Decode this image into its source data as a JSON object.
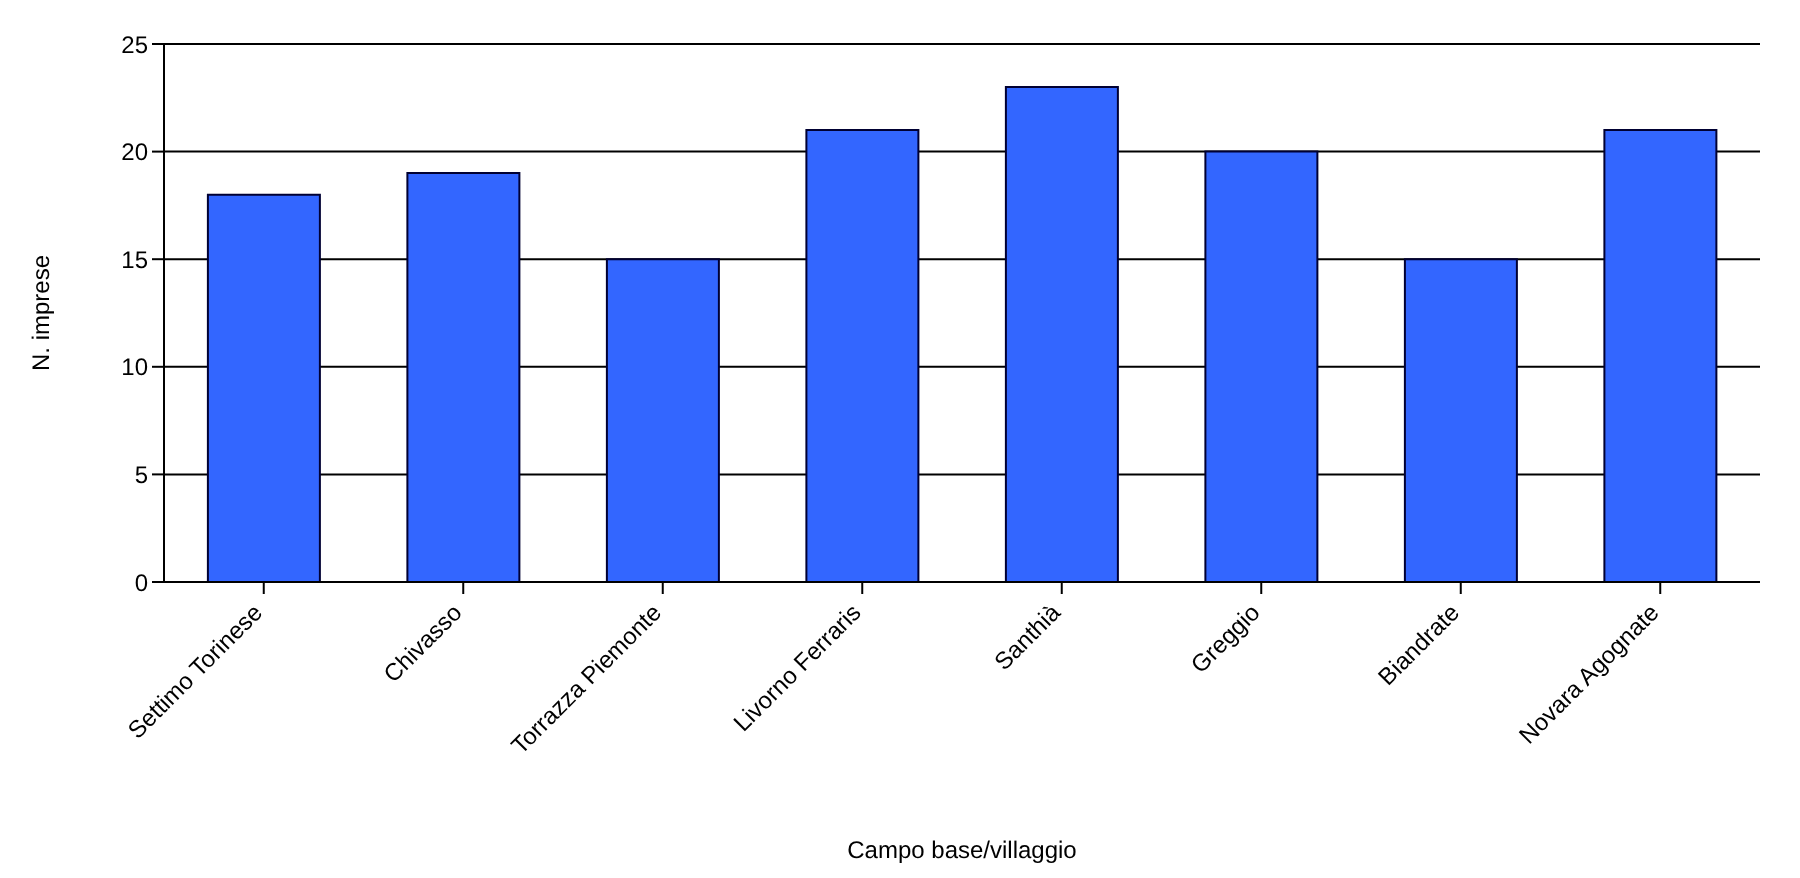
{
  "chart_data": {
    "type": "bar",
    "xlabel": "Campo base/villaggio",
    "ylabel": "N. imprese",
    "categories": [
      "Settimo Torinese",
      "Chivasso",
      "Torrazza Piemonte",
      "Livorno Ferraris",
      "Santhià",
      "Greggio",
      "Biandrate",
      "Novara Agognate"
    ],
    "values": [
      18,
      19,
      15,
      21,
      23,
      20,
      15,
      21
    ],
    "color": "#3366ff",
    "ylim": [
      0,
      25
    ],
    "yticks": [
      0,
      5,
      10,
      15,
      20,
      25
    ],
    "grid": "y",
    "legend": false
  }
}
